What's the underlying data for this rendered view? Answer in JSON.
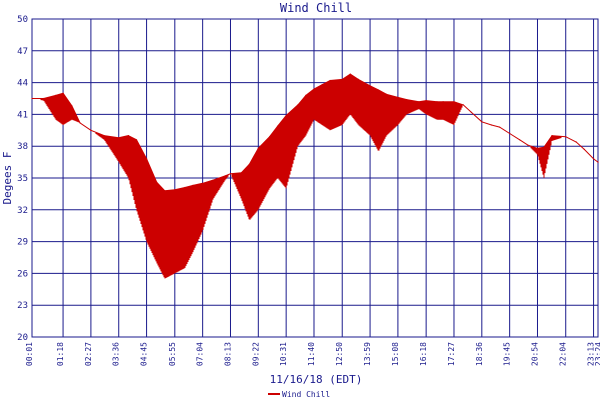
{
  "chart_data": {
    "type": "line",
    "title": "Wind Chill",
    "xlabel": "11/16/18 (EDT)",
    "ylabel": "Degees F",
    "ylim": [
      20,
      50
    ],
    "yticks": [
      "20",
      "23",
      "26",
      "29",
      "32",
      "35",
      "38",
      "41",
      "44",
      "47",
      "50"
    ],
    "xticks": [
      "00:01",
      "01:18",
      "02:27",
      "03:36",
      "04:45",
      "05:55",
      "07:04",
      "08:13",
      "09:22",
      "10:31",
      "11:40",
      "12:50",
      "13:59",
      "15:08",
      "16:18",
      "17:27",
      "18:36",
      "19:45",
      "20:54",
      "22:04",
      "23:13",
      "23:24"
    ],
    "grid": true,
    "legend": "bottom-center",
    "series": [
      {
        "name": "Wind Chill",
        "color": "#cc0000",
        "x": [
          "00:01",
          "00:30",
          "01:00",
          "01:18",
          "01:40",
          "02:00",
          "02:27",
          "03:00",
          "03:36",
          "04:00",
          "04:20",
          "04:45",
          "05:10",
          "05:30",
          "05:55",
          "06:20",
          "06:40",
          "07:04",
          "07:30",
          "08:00",
          "08:13",
          "08:40",
          "09:00",
          "09:22",
          "09:50",
          "10:10",
          "10:31",
          "11:00",
          "11:20",
          "11:40",
          "12:00",
          "12:20",
          "12:50",
          "13:10",
          "13:30",
          "13:59",
          "14:20",
          "14:40",
          "15:08",
          "15:30",
          "16:00",
          "16:18",
          "16:45",
          "17:00",
          "17:27",
          "17:50",
          "18:10",
          "18:36",
          "19:00",
          "19:20",
          "19:45",
          "20:10",
          "20:30",
          "20:54",
          "21:10",
          "21:30",
          "22:04",
          "22:30",
          "22:50",
          "23:13",
          "23:24"
        ],
        "upper": [
          42.5,
          42.5,
          42.8,
          43.0,
          41.8,
          40.2,
          39.5,
          39.0,
          38.8,
          39.0,
          38.6,
          36.8,
          34.6,
          33.8,
          33.9,
          34.1,
          34.3,
          34.5,
          34.8,
          35.2,
          35.4,
          35.5,
          36.3,
          37.8,
          38.9,
          39.9,
          40.9,
          41.9,
          42.8,
          43.4,
          43.8,
          44.2,
          44.3,
          44.8,
          44.3,
          43.7,
          43.3,
          42.9,
          42.6,
          42.4,
          42.2,
          42.3,
          42.2,
          42.2,
          42.2,
          41.9,
          41.2,
          40.3,
          40.0,
          39.8,
          39.2,
          38.6,
          38.1,
          37.8,
          37.9,
          39.0,
          38.9,
          38.4,
          37.7,
          36.8,
          36.5
        ],
        "lower": [
          42.5,
          42.3,
          40.5,
          40.0,
          40.5,
          40.2,
          39.5,
          38.6,
          36.5,
          35.0,
          32.0,
          29.0,
          27.0,
          25.5,
          26.0,
          26.5,
          28.0,
          30.0,
          33.0,
          34.8,
          35.4,
          33.0,
          31.0,
          32.0,
          34.0,
          35.0,
          34.0,
          38.0,
          39.0,
          40.5,
          40.0,
          39.5,
          40.0,
          41.0,
          40.0,
          39.0,
          37.5,
          39.0,
          40.0,
          41.0,
          41.5,
          41.0,
          40.5,
          40.5,
          40.0,
          41.9,
          41.2,
          40.3,
          40.0,
          39.8,
          39.2,
          38.6,
          38.1,
          37.2,
          35.0,
          38.5,
          38.9,
          38.4,
          37.7,
          36.8,
          36.5
        ]
      }
    ]
  }
}
